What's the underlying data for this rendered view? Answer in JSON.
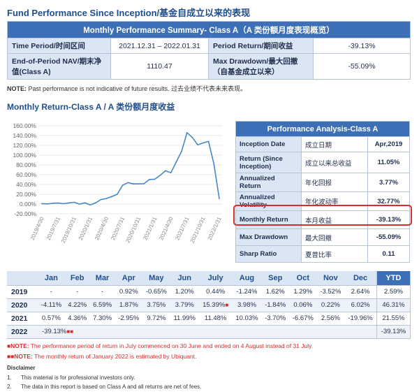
{
  "page_title": "Fund Performance Since Inception/基金自成立以来的表现",
  "summary": {
    "header": "Monthly Performance Summary- Class A（A 类份额月度表现概览）",
    "time_period_label": "Time Period/时间区间",
    "time_period_value": "2021.12.31 – 2022.01.31",
    "period_return_label": "Period Return/期间收益",
    "period_return_value": "-39.13%",
    "nav_label": "End-of-Period NAV/期末净值(Class A)",
    "nav_value": "1110.47",
    "drawdown_label": "Max Drawdown/最大回撤（自基金成立以来）",
    "drawdown_value": "-55.09%"
  },
  "note": {
    "prefix": "NOTE:",
    "text": " Past performance is not indicative of future results.  过去业绩不代表未来表现。"
  },
  "chart_title": "Monthly Return-Class A / A 类份额月度收益",
  "chart_data": {
    "type": "line",
    "title": "",
    "xlabel": "",
    "ylabel": "",
    "ylim": [
      -20,
      160
    ],
    "yticks": [
      "160.00%",
      "140.00%",
      "120.00%",
      "100.00%",
      "80.00%",
      "60.00%",
      "40.00%",
      "20.00%",
      "0.00%",
      "-20.00%"
    ],
    "xticks": [
      "2019/4/30",
      "2019/7/31",
      "2019/10/31",
      "2020/1/31",
      "2020/4/30",
      "2020/7/31",
      "2020/10/31",
      "2021/1/31",
      "2021/4/30",
      "2021/7/31",
      "2021/10/31",
      "2022/1/31"
    ],
    "grid": true,
    "color": "#4a86c8",
    "x": [
      "2019/4",
      "2019/5",
      "2019/6",
      "2019/7",
      "2019/8",
      "2019/9",
      "2019/10",
      "2019/11",
      "2019/12",
      "2020/1",
      "2020/2",
      "2020/3",
      "2020/4",
      "2020/5",
      "2020/6",
      "2020/7",
      "2020/8",
      "2020/9",
      "2020/10",
      "2020/11",
      "2020/12",
      "2021/1",
      "2021/2",
      "2021/3",
      "2021/4",
      "2021/5",
      "2021/6",
      "2021/7",
      "2021/8",
      "2021/9",
      "2021/10",
      "2021/11",
      "2021/12",
      "2022/1"
    ],
    "values": [
      0.9,
      0.3,
      1.5,
      2.0,
      0.7,
      2.3,
      3.6,
      -0.2,
      2.4,
      -1.8,
      2.4,
      9.3,
      11.3,
      15.5,
      19.9,
      38.3,
      43.8,
      41.2,
      41.3,
      41.6,
      50.1,
      50.9,
      58.5,
      68.0,
      64.0,
      86.0,
      108.0,
      146.0,
      136.0,
      121.0,
      125.0,
      128.0,
      82.0,
      11.0
    ]
  },
  "analysis": {
    "header": "Performance Analysis-Class A",
    "rows": [
      {
        "en": "Inception Date",
        "cn": "成立日期",
        "val": "Apr,2019"
      },
      {
        "en": "Return (Since Inception)",
        "cn": "成立以来总收益",
        "val": "11.05%"
      },
      {
        "en": "Annualized Return",
        "cn": "年化回报",
        "val": "3.77%"
      },
      {
        "en": "Annualized Volatility",
        "cn": "年化波动率",
        "val": "32.77%"
      },
      {
        "en": "Monthly Return",
        "cn": "本月收益",
        "val": "-39.13%"
      },
      {
        "en": "Max Drawdown",
        "cn": "最大回撤",
        "val": "-55.09%"
      },
      {
        "en": "Sharp Ratio",
        "cn": "夏普比率",
        "val": "0.11"
      }
    ]
  },
  "monthly": {
    "months": [
      "Jan",
      "Feb",
      "Mar",
      "Apr",
      "May",
      "Jun",
      "July",
      "Aug",
      "Sep",
      "Oct",
      "Nov",
      "Dec"
    ],
    "ytd_label": "YTD",
    "rows": [
      {
        "year": "2019",
        "vals": [
          "-",
          "-",
          "-",
          "0.92%",
          "-0.65%",
          "1.20%",
          "0.44%",
          "-1.24%",
          "1.62%",
          "1.29%",
          "-3.52%",
          "2.64%"
        ],
        "ytd": "2.59%"
      },
      {
        "year": "2020",
        "vals": [
          "-4.11%",
          "4.22%",
          "6.59%",
          "1.87%",
          "3.75%",
          "3.79%",
          "15.39%",
          "3.98%",
          "-1.84%",
          "0.06%",
          "0.22%",
          "6.02%"
        ],
        "ytd": "46.31%"
      },
      {
        "year": "2021",
        "vals": [
          "0.57%",
          "4.36%",
          "7.30%",
          "-2.95%",
          "9.72%",
          "11.99%",
          "11.48%",
          "10.03%",
          "-3.70%",
          "-6.67%",
          "2.56%",
          "-19.96%"
        ],
        "ytd": "21.55%"
      },
      {
        "year": "2022",
        "vals": [
          "-39.13%",
          "",
          "",
          "",
          "",
          "",
          "",
          "",
          "",
          "",
          "",
          ""
        ],
        "ytd": "-39.13%"
      }
    ],
    "star1": "■",
    "star2": "■■"
  },
  "footnotes": {
    "n1_mark": "■NOTE:",
    "n1_text": " The performance period of return in July commenced on 30 June and ended on 4 August instead of 31 July.",
    "n2_mark": "■■NOTE:",
    "n2_text": " The monthly return of January 2022 is estimated by Ubiquant."
  },
  "disclaimer": {
    "title": "Disclaimer",
    "items": [
      {
        "num": "1.",
        "text": "This material is for professional investors only."
      },
      {
        "num": "2.",
        "text": "The data in this report is based on Class A and all returns are net of fees."
      }
    ]
  }
}
